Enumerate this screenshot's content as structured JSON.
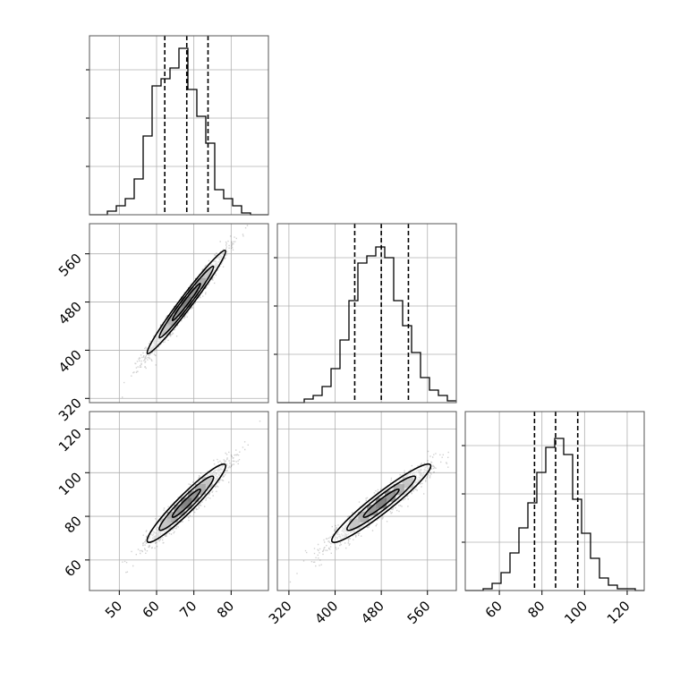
{
  "chart_data": {
    "type": "corner",
    "title": "",
    "parameters": [
      {
        "ticks": [
          50,
          60,
          70,
          80
        ]
      },
      {
        "ticks": [
          320,
          400,
          480,
          560
        ]
      },
      {
        "ticks": [
          60,
          80,
          100,
          120
        ]
      }
    ],
    "histograms": [
      {
        "xlim": [
          42,
          90
        ],
        "edges": [
          42,
          44.4,
          46.8,
          49.2,
          51.6,
          54,
          56.4,
          58.8,
          61.2,
          63.6,
          66,
          68.4,
          70.8,
          73.2,
          75.6,
          78,
          80.4,
          82.8,
          85.2,
          87.6,
          90
        ],
        "heights": [
          0,
          0,
          0.02,
          0.05,
          0.09,
          0.2,
          0.44,
          0.72,
          0.76,
          0.82,
          0.93,
          0.7,
          0.55,
          0.4,
          0.14,
          0.09,
          0.05,
          0.01,
          0,
          0
        ],
        "quantiles": [
          62.2,
          68.1,
          73.8
        ]
      },
      {
        "xlim": [
          300,
          610
        ],
        "edges": [
          300,
          315.5,
          331,
          346.5,
          362,
          377.5,
          393,
          408.5,
          424,
          439.5,
          455,
          470.5,
          486,
          501.5,
          517,
          532.5,
          548,
          563.5,
          579,
          594.5,
          610
        ],
        "heights": [
          0,
          0,
          0,
          0.02,
          0.04,
          0.09,
          0.19,
          0.35,
          0.57,
          0.78,
          0.82,
          0.87,
          0.81,
          0.57,
          0.43,
          0.28,
          0.14,
          0.07,
          0.04,
          0.01
        ],
        "quantiles": [
          434,
          480,
          527
        ]
      },
      {
        "xlim": [
          44,
          128
        ],
        "edges": [
          44,
          48.2,
          52.4,
          56.6,
          60.8,
          65,
          69.2,
          73.4,
          77.6,
          81.8,
          86,
          90.2,
          94.4,
          98.6,
          102.8,
          107,
          111.2,
          115.4,
          119.6,
          123.8,
          128
        ],
        "heights": [
          0,
          0,
          0.01,
          0.04,
          0.1,
          0.21,
          0.35,
          0.49,
          0.66,
          0.8,
          0.85,
          0.76,
          0.51,
          0.32,
          0.18,
          0.07,
          0.03,
          0.01,
          0.01,
          0
        ],
        "quantiles": [
          76.5,
          86.4,
          96.8
        ]
      }
    ],
    "scatter_pairs": [
      {
        "x_param": 0,
        "y_param": 1,
        "xlim": [
          42,
          90
        ],
        "ylim": [
          313,
          610
        ],
        "center": [
          68,
          480
        ],
        "sigma": [
          5.4,
          44
        ],
        "corr": 0.98
      },
      {
        "x_param": 0,
        "y_param": 2,
        "xlim": [
          42,
          90
        ],
        "ylim": [
          46,
          128
        ],
        "center": [
          68,
          86
        ],
        "sigma": [
          5.4,
          9.2
        ],
        "corr": 0.95
      },
      {
        "x_param": 1,
        "y_param": 2,
        "xlim": [
          300,
          610
        ],
        "ylim": [
          46,
          128
        ],
        "center": [
          480,
          86
        ],
        "sigma": [
          44,
          9.2
        ],
        "corr": 0.95
      }
    ],
    "grid": true,
    "legend": "none"
  }
}
